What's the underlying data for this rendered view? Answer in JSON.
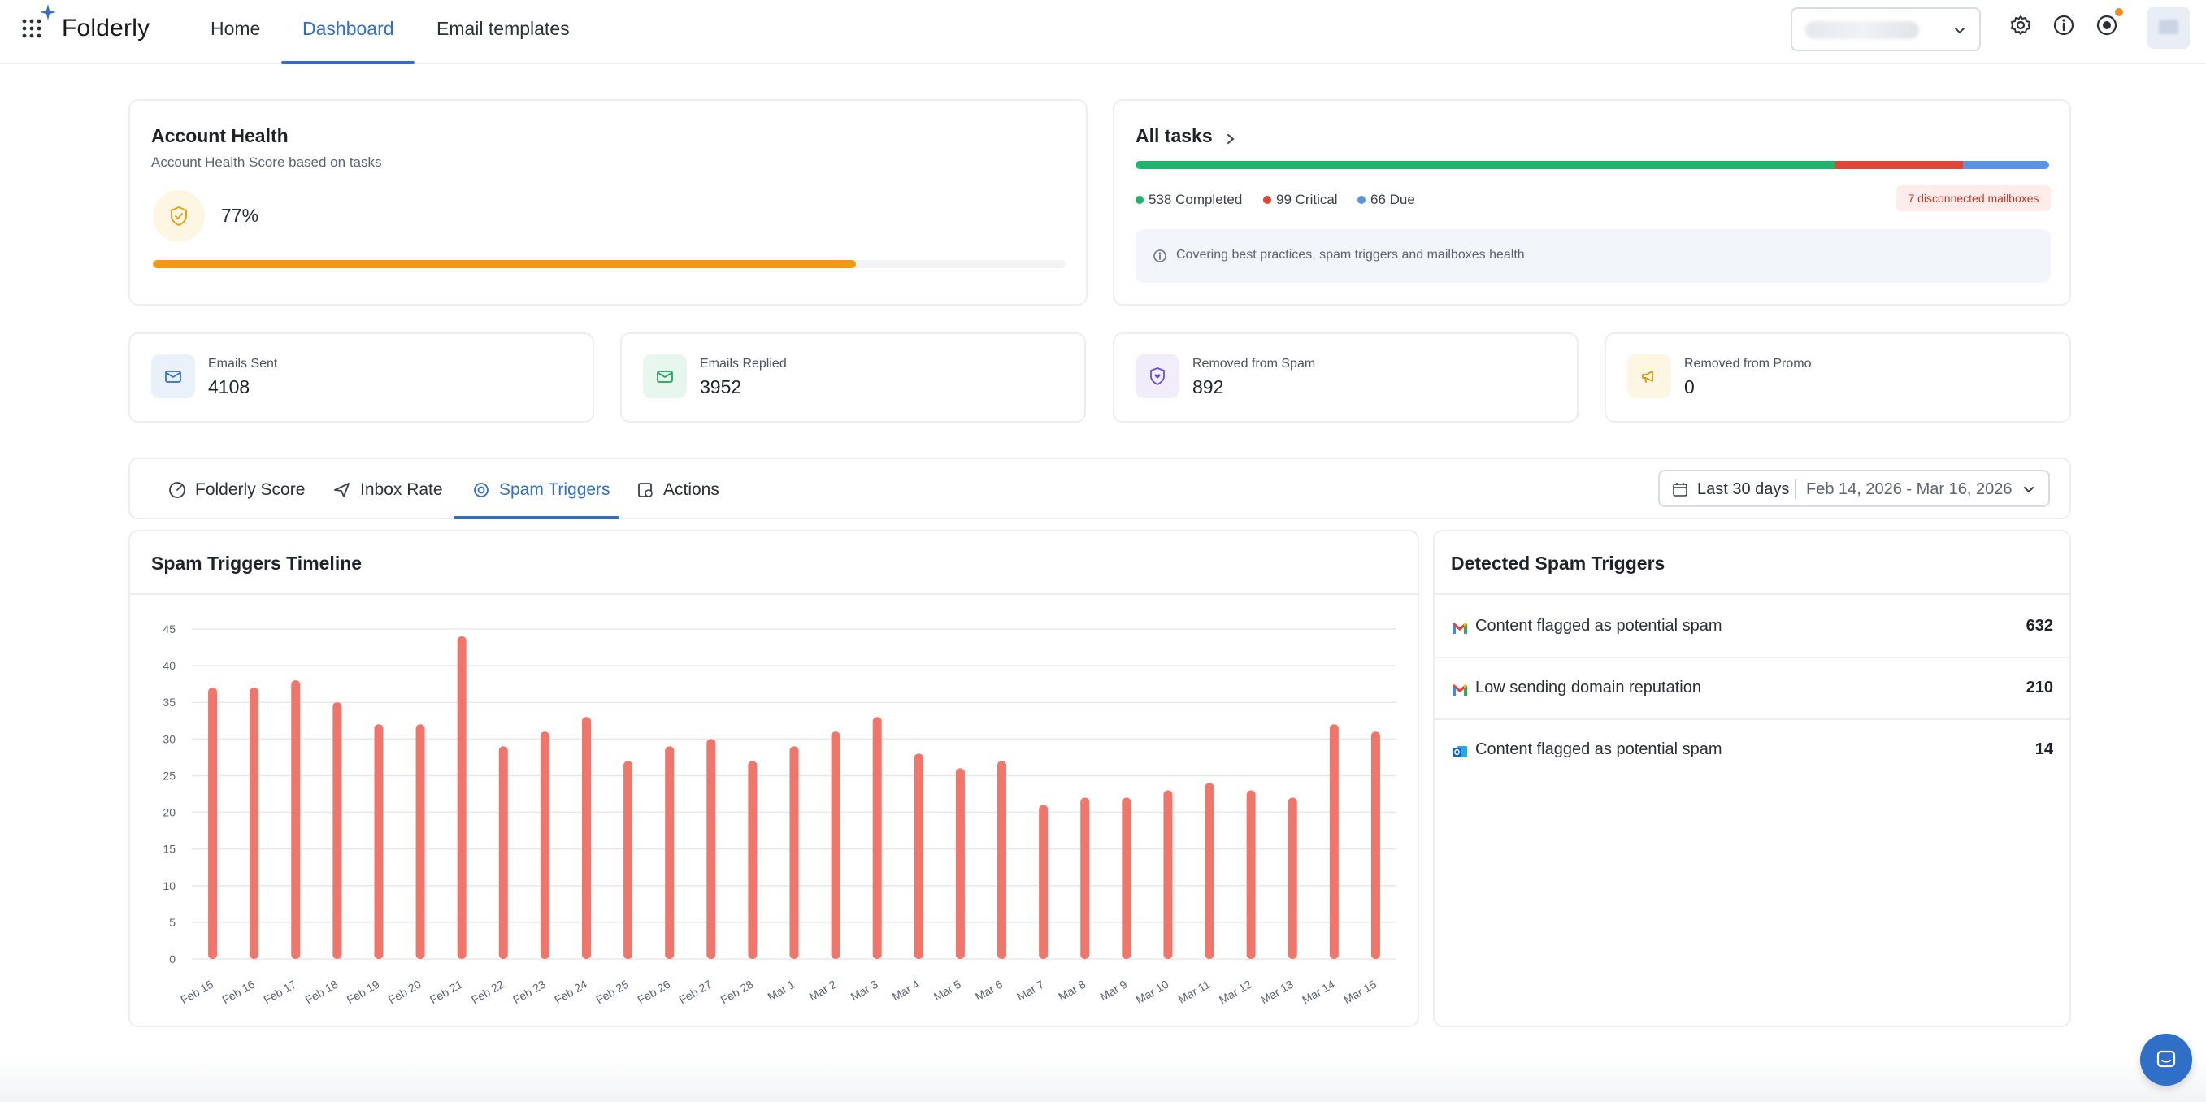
{
  "app": {
    "name": "Folderly"
  },
  "nav": {
    "tabs": [
      "Home",
      "Dashboard",
      "Email templates"
    ],
    "active": "Dashboard"
  },
  "health": {
    "title": "Account Health",
    "subtitle": "Account Health Score based on tasks",
    "score_label": "77%",
    "score": 77
  },
  "tasks": {
    "title": "All tasks",
    "completed": 538,
    "critical": 99,
    "due": 66,
    "completed_label": "538 Completed",
    "critical_label": "99 Critical",
    "due_label": "66 Due",
    "disconnected_label": "7 disconnected mailboxes",
    "info": "Covering best practices, spam triggers and mailboxes health",
    "colors": {
      "completed": "#1fb36b",
      "critical": "#e0453a",
      "due": "#5b93e3"
    }
  },
  "stats": [
    {
      "label": "Emails Sent",
      "value": "4108"
    },
    {
      "label": "Emails Replied",
      "value": "3952"
    },
    {
      "label": "Removed from Spam",
      "value": "892"
    },
    {
      "label": "Removed from Promo",
      "value": "0"
    }
  ],
  "subtabs": [
    "Folderly Score",
    "Inbox Rate",
    "Spam Triggers",
    "Actions"
  ],
  "active_subtab": "Spam Triggers",
  "date_filter": {
    "label": "Last 30 days",
    "range": "Feb 14, 2026 - Mar 16, 2026"
  },
  "chart_title": "Spam Triggers Timeline",
  "chart_data": {
    "type": "bar",
    "title": "Spam Triggers Timeline",
    "categories": [
      "Feb 15",
      "Feb 16",
      "Feb 17",
      "Feb 18",
      "Feb 19",
      "Feb 20",
      "Feb 21",
      "Feb 22",
      "Feb 23",
      "Feb 24",
      "Feb 25",
      "Feb 26",
      "Feb 27",
      "Feb 28",
      "Mar 1",
      "Mar 2",
      "Mar 3",
      "Mar 4",
      "Mar 5",
      "Mar 6",
      "Mar 7",
      "Mar 8",
      "Mar 9",
      "Mar 10",
      "Mar 11",
      "Mar 12",
      "Mar 13",
      "Mar 14",
      "Mar 15"
    ],
    "values": [
      37,
      37,
      38,
      35,
      32,
      32,
      44,
      29,
      31,
      33,
      27,
      29,
      30,
      27,
      29,
      31,
      33,
      28,
      26,
      27,
      21,
      22,
      22,
      23,
      24,
      23,
      22,
      32,
      31
    ],
    "yticks": [
      0,
      5,
      10,
      15,
      20,
      25,
      30,
      35,
      40,
      45
    ],
    "ylim": [
      0,
      45
    ],
    "xlabel": "",
    "ylabel": "",
    "bar_color": "#f0766b",
    "grid": true
  },
  "detected": {
    "title": "Detected Spam Triggers",
    "items": [
      {
        "label": "Content flagged as potential spam",
        "count": "632",
        "icon": "gmail-icon"
      },
      {
        "label": "Low sending domain reputation",
        "count": "210",
        "icon": "gmail-icon"
      },
      {
        "label": "Content flagged as potential spam",
        "count": "14",
        "icon": "outlook-icon"
      }
    ]
  }
}
